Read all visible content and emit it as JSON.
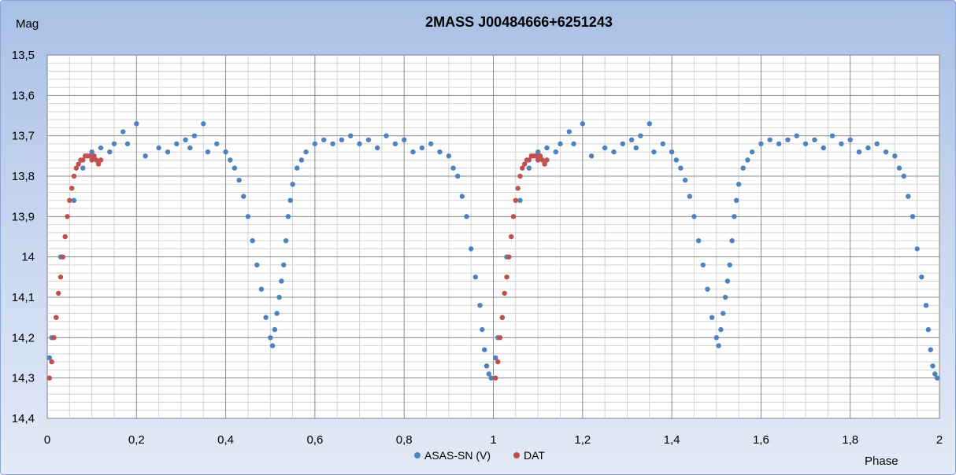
{
  "chart_data": {
    "type": "scatter",
    "title": "2MASS J00484666+6251243",
    "ylabel": "Mag",
    "xlabel": "Phase",
    "xlim": [
      0,
      2
    ],
    "ylim": [
      13.5,
      14.4
    ],
    "y_reversed": true,
    "x_ticks": [
      "0",
      "0,2",
      "0,4",
      "0,6",
      "0,8",
      "1",
      "1,2",
      "1,4",
      "1,6",
      "1,8",
      "2"
    ],
    "y_ticks": [
      "13,5",
      "13,6",
      "13,7",
      "13,8",
      "13,9",
      "14",
      "14,1",
      "14,2",
      "14,3",
      "14,4"
    ],
    "grid": true,
    "legend_position": "bottom",
    "series": [
      {
        "name": "ASAS-SN (V)",
        "color": "#4f81bd",
        "x": [
          0.005,
          0.01,
          0.02,
          0.03,
          0.04,
          0.06,
          0.08,
          0.1,
          0.12,
          0.14,
          0.15,
          0.17,
          0.18,
          0.2,
          0.22,
          0.25,
          0.27,
          0.29,
          0.31,
          0.32,
          0.33,
          0.35,
          0.36,
          0.38,
          0.4,
          0.41,
          0.42,
          0.43,
          0.44,
          0.45,
          0.46,
          0.47,
          0.48,
          0.49,
          0.5,
          0.505,
          0.51,
          0.515,
          0.52,
          0.525,
          0.53,
          0.535,
          0.54,
          0.545,
          0.55,
          0.56,
          0.57,
          0.58,
          0.6,
          0.62,
          0.64,
          0.66,
          0.68,
          0.7,
          0.72,
          0.74,
          0.76,
          0.78,
          0.8,
          0.82,
          0.84,
          0.86,
          0.88,
          0.9,
          0.91,
          0.92,
          0.93,
          0.94,
          0.95,
          0.96,
          0.97,
          0.975,
          0.98,
          0.985,
          0.99,
          0.995
        ],
        "y": [
          14.25,
          14.2,
          14.15,
          14.0,
          13.95,
          13.86,
          13.78,
          13.74,
          13.73,
          13.74,
          13.72,
          13.69,
          13.72,
          13.67,
          13.75,
          13.73,
          13.74,
          13.72,
          13.71,
          13.73,
          13.7,
          13.67,
          13.74,
          13.72,
          13.74,
          13.76,
          13.78,
          13.81,
          13.85,
          13.9,
          13.96,
          14.02,
          14.08,
          14.15,
          14.2,
          14.22,
          14.18,
          14.14,
          14.1,
          14.06,
          14.02,
          13.96,
          13.9,
          13.86,
          13.82,
          13.78,
          13.76,
          13.74,
          13.72,
          13.71,
          13.72,
          13.71,
          13.7,
          13.72,
          13.71,
          13.73,
          13.7,
          13.72,
          13.71,
          13.74,
          13.73,
          13.72,
          13.74,
          13.75,
          13.78,
          13.8,
          13.85,
          13.9,
          13.98,
          14.05,
          14.12,
          14.18,
          14.23,
          14.27,
          14.29,
          14.3
        ]
      },
      {
        "name": "DAT",
        "color": "#c0504d",
        "x": [
          0.005,
          0.01,
          0.015,
          0.02,
          0.025,
          0.03,
          0.035,
          0.04,
          0.045,
          0.05,
          0.055,
          0.06,
          0.065,
          0.07,
          0.075,
          0.08,
          0.085,
          0.09,
          0.095,
          0.1,
          0.105,
          0.11,
          0.115,
          0.12
        ],
        "y": [
          14.3,
          14.26,
          14.2,
          14.15,
          14.09,
          14.05,
          14.0,
          13.95,
          13.9,
          13.86,
          13.83,
          13.8,
          13.78,
          13.77,
          13.76,
          13.76,
          13.75,
          13.75,
          13.75,
          13.76,
          13.75,
          13.76,
          13.77,
          13.76
        ]
      }
    ]
  }
}
